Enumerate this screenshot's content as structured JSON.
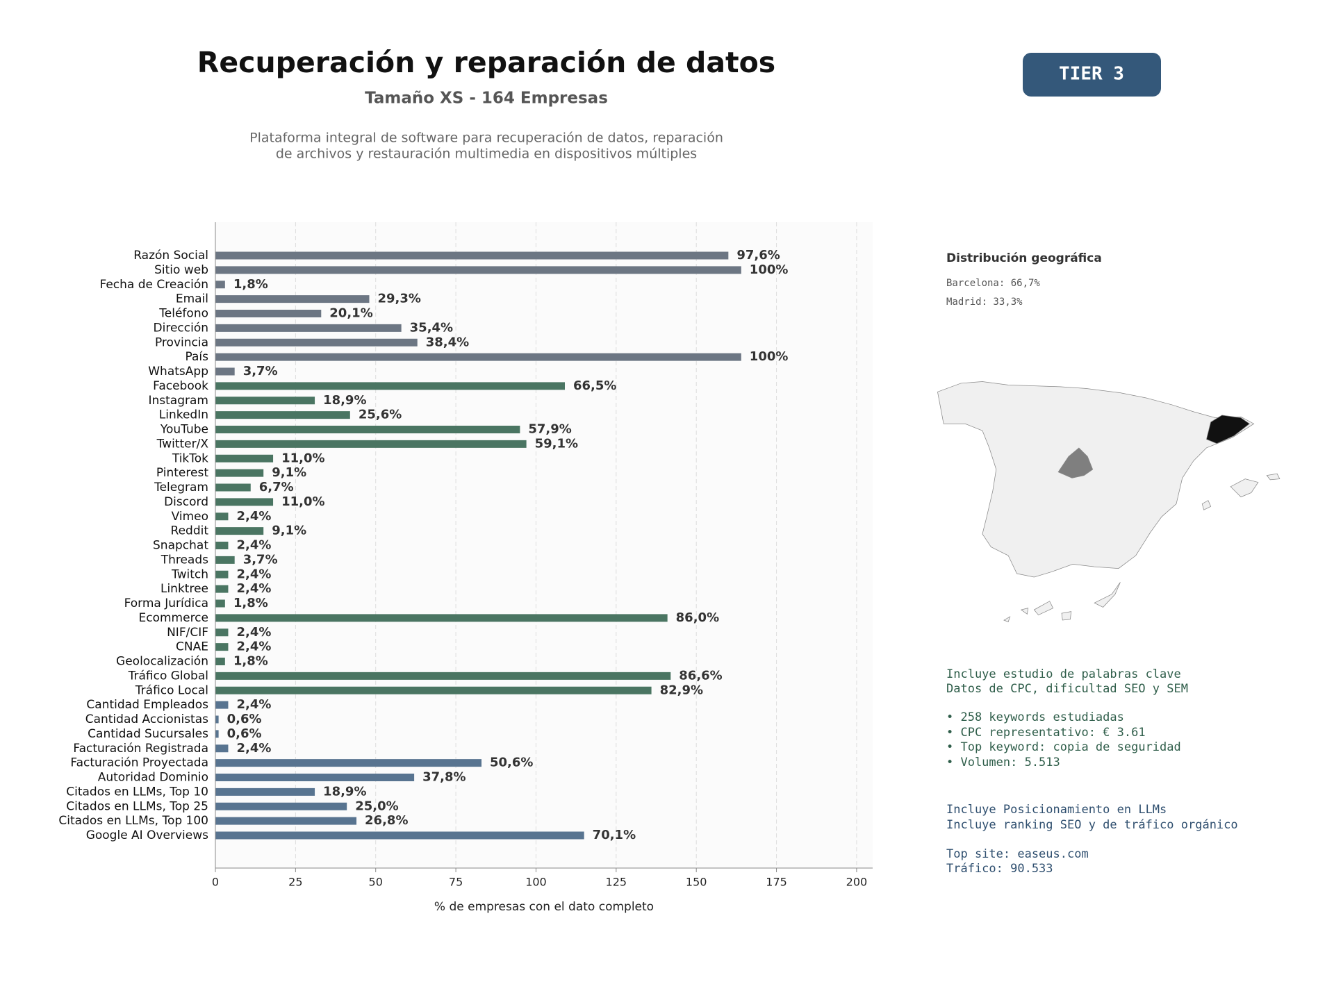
{
  "header": {
    "title": "Recuperación y reparación de datos",
    "subtitle": "Tamaño XS - 164 Empresas",
    "description": [
      "Plataforma integral de software para recuperación de datos, reparación",
      "de archivos y restauración multimedia en dispositivos múltiples"
    ],
    "badge": "TIER 3"
  },
  "chart_data": {
    "type": "barh",
    "x_label": "% de empresas con el dato completo",
    "categories": [
      "Razón Social",
      "Sitio web",
      "Fecha de Creación",
      "Email",
      "Teléfono",
      "Dirección",
      "Provincia",
      "País",
      "WhatsApp",
      "Facebook",
      "Instagram",
      "LinkedIn",
      "YouTube",
      "Twitter/X",
      "TikTok",
      "Pinterest",
      "Telegram",
      "Discord",
      "Vimeo",
      "Reddit",
      "Snapchat",
      "Threads",
      "Twitch",
      "Linktree",
      "Forma Jurídica",
      "Ecommerce",
      "NIF/CIF",
      "CNAE",
      "Geolocalización",
      "Tráfico Global",
      "Tráfico Local",
      "Cantidad Empleados",
      "Cantidad Accionistas",
      "Cantidad Sucursales",
      "Facturación Registrada",
      "Facturación Proyectada",
      "Autoridad Dominio",
      "Citados en LLMs, Top 10",
      "Citados en LLMs, Top 25",
      "Citados en LLMs, Top 100",
      "Google AI Overviews"
    ],
    "values": [
      160,
      164,
      3,
      48,
      33,
      58,
      63,
      164,
      6,
      109,
      31,
      42,
      95,
      97,
      18,
      15,
      11,
      18,
      4,
      15,
      4,
      6,
      4,
      4,
      3,
      141,
      4,
      4,
      3,
      142,
      136,
      4,
      1,
      1,
      4,
      83,
      62,
      31,
      41,
      44,
      115
    ],
    "value_labels": [
      "97,6%",
      "100%",
      "1,8%",
      "29,3%",
      "20,1%",
      "35,4%",
      "38,4%",
      "100%",
      "3,7%",
      "66,5%",
      "18,9%",
      "25,6%",
      "57,9%",
      "59,1%",
      "11,0%",
      "9,1%",
      "6,7%",
      "11,0%",
      "2,4%",
      "9,1%",
      "2,4%",
      "3,7%",
      "2,4%",
      "2,4%",
      "1,8%",
      "86,0%",
      "2,4%",
      "2,4%",
      "1,8%",
      "86,6%",
      "82,9%",
      "2,4%",
      "0,6%",
      "0,6%",
      "2,4%",
      "50,6%",
      "37,8%",
      "18,9%",
      "25,0%",
      "26,8%",
      "70,1%"
    ],
    "colors": [
      "#6c7683",
      "#6c7683",
      "#6c7683",
      "#6c7683",
      "#6c7683",
      "#6c7683",
      "#6c7683",
      "#6c7683",
      "#6c7683",
      "#4a7562",
      "#4a7562",
      "#4a7562",
      "#4a7562",
      "#4a7562",
      "#4a7562",
      "#4a7562",
      "#4a7562",
      "#4a7562",
      "#4a7562",
      "#4a7562",
      "#4a7562",
      "#4a7562",
      "#4a7562",
      "#4a7562",
      "#4a7562",
      "#4a7562",
      "#4a7562",
      "#4a7562",
      "#4a7562",
      "#4a7562",
      "#4a7562",
      "#587490",
      "#587490",
      "#587490",
      "#587490",
      "#587490",
      "#587490",
      "#587490",
      "#587490",
      "#587490",
      "#587490"
    ],
    "xlim": [
      0,
      205
    ],
    "xticks": [
      0,
      25,
      50,
      75,
      100,
      125,
      150,
      175,
      200
    ],
    "grid": true
  },
  "geo": {
    "title": "Distribución geográfica",
    "items": [
      "Barcelona: 66,7%",
      "Madrid: 33,3%"
    ]
  },
  "notes": {
    "keywords": [
      "Incluye estudio de palabras clave",
      "Datos de CPC, dificultad SEO y SEM",
      "• 258 keywords estudiadas",
      "• CPC representativo: € 3.61",
      "• Top keyword: copia de seguridad",
      "• Volumen: 5.513"
    ],
    "llm": [
      "Incluye Posicionamiento en LLMs",
      "Incluye ranking SEO y de tráfico orgánico",
      "Top site: easeus.com",
      "Tráfico: 90.533"
    ]
  }
}
